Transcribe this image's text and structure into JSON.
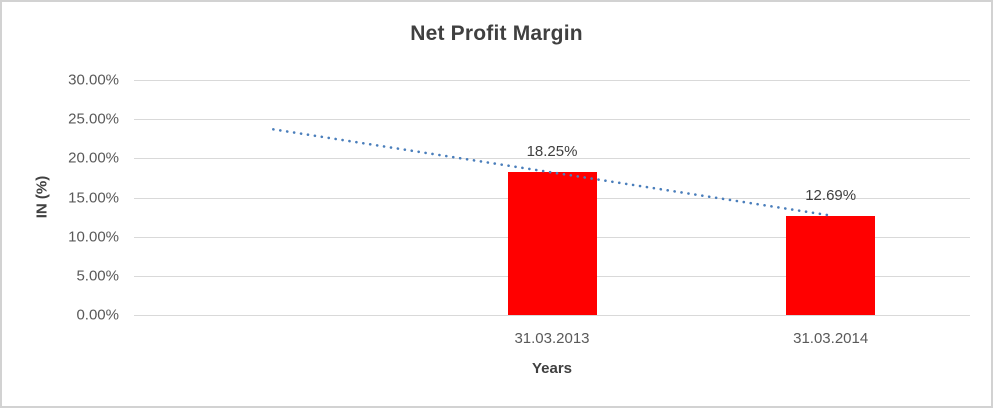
{
  "chart": {
    "title": "Net Profit Margin",
    "y_axis_title": "IN (%)",
    "x_axis_title": "Years"
  },
  "chart_data": {
    "type": "bar",
    "title": "Net Profit Margin",
    "xlabel": "Years",
    "ylabel": "IN (%)",
    "categories": [
      "31.03.2013",
      "31.03.2014"
    ],
    "values": [
      18.25,
      12.69
    ],
    "data_labels": [
      "18.25%",
      "12.69%"
    ],
    "ylim": [
      0,
      30
    ],
    "yticks": [
      {
        "value": 0,
        "label": "0.00%"
      },
      {
        "value": 5,
        "label": "5.00%"
      },
      {
        "value": 10,
        "label": "10.00%"
      },
      {
        "value": 15,
        "label": "15.00%"
      },
      {
        "value": 20,
        "label": "20.00%"
      },
      {
        "value": 25,
        "label": "25.00%"
      },
      {
        "value": 30,
        "label": "30.00%"
      }
    ],
    "grid": "horizontal",
    "legend": "none",
    "bar_color": "#ff0000",
    "slot_count": 3,
    "bar_slots": [
      1,
      2
    ],
    "trendline": {
      "style": "dotted",
      "color": "#4a7ebb",
      "points": [
        {
          "slot": 0,
          "value": 23.7
        },
        {
          "slot": 2,
          "value": 12.7
        }
      ]
    }
  }
}
